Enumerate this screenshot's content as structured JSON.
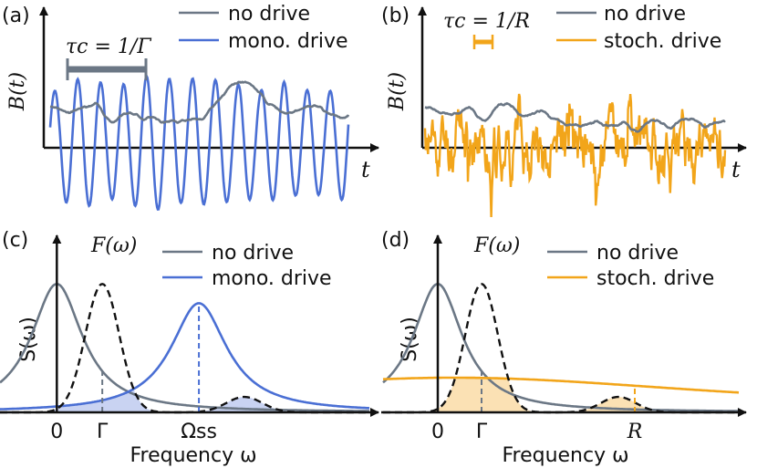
{
  "colors": {
    "no_drive": "#6b7785",
    "mono": "#4a6fd4",
    "stoch": "#f2a51a",
    "mono_fill": "#c9d3f2",
    "stoch_fill": "#fbe1b4",
    "axis": "#111111",
    "filter": "#111111"
  },
  "chart_data": [
    {
      "panel": "(a)",
      "type": "line",
      "ylabel": "B(t)",
      "xlabel": "t",
      "legend": [
        "no drive",
        "mono. drive"
      ],
      "annotation": "τc = 1/Γ",
      "series": [
        {
          "name": "no drive",
          "kind": "slow-noise",
          "seed": 3,
          "baseline": 0.55,
          "amp": 0.35
        },
        {
          "name": "mono. drive",
          "kind": "oscillation",
          "cycles": 13,
          "amp": 1.0
        }
      ]
    },
    {
      "panel": "(b)",
      "type": "line",
      "ylabel": "B(t)",
      "xlabel": "t",
      "legend": [
        "no drive",
        "stoch. drive"
      ],
      "annotation": "τc = 1/R",
      "series": [
        {
          "name": "no drive",
          "kind": "slow-noise",
          "seed": 7,
          "baseline": 0.55,
          "amp": 0.35
        },
        {
          "name": "stoch. drive",
          "kind": "fast-noise",
          "seed": 11,
          "amp": 1.0
        }
      ]
    },
    {
      "panel": "(c)",
      "type": "line",
      "ylabel": "S(ω)",
      "xlabel": "Frequency ω",
      "legend": [
        "no drive",
        "mono. drive"
      ],
      "filter_label": "F(ω)",
      "xlim": [
        -1.0,
        5.5
      ],
      "ylim": [
        0,
        1.35
      ],
      "tick_labels": [
        "0",
        "Γ",
        "Ωss"
      ],
      "tick_values": [
        0,
        0.8,
        2.5
      ],
      "series": [
        {
          "name": "no drive",
          "shape": "lorentzian",
          "center": 0,
          "width": 0.55,
          "height": 1.0
        },
        {
          "name": "mono. drive",
          "shape": "lorentzian",
          "center": 2.5,
          "width": 0.6,
          "height": 0.85
        },
        {
          "name": "F(ω)",
          "shape": "filter",
          "center": 0.8,
          "width": 0.4,
          "height": 1.0,
          "side_center": 3.3,
          "side_height": 0.12
        }
      ]
    },
    {
      "panel": "(d)",
      "type": "line",
      "ylabel": "S(ω)",
      "xlabel": "Frequency ω",
      "legend": [
        "no drive",
        "stoch. drive"
      ],
      "filter_label": "F(ω)",
      "xlim": [
        -1.0,
        5.5
      ],
      "ylim": [
        0,
        1.35
      ],
      "tick_labels": [
        "0",
        "Γ",
        "R"
      ],
      "tick_values": [
        0,
        0.8,
        3.6
      ],
      "series": [
        {
          "name": "no drive",
          "shape": "lorentzian",
          "center": 0,
          "width": 0.55,
          "height": 1.0
        },
        {
          "name": "stoch. drive",
          "shape": "broad",
          "center": 0.3,
          "width": 6.0,
          "height": 0.27
        },
        {
          "name": "F(ω)",
          "shape": "filter",
          "center": 0.8,
          "width": 0.4,
          "height": 1.0,
          "side_center": 3.3,
          "side_height": 0.12
        }
      ]
    }
  ]
}
